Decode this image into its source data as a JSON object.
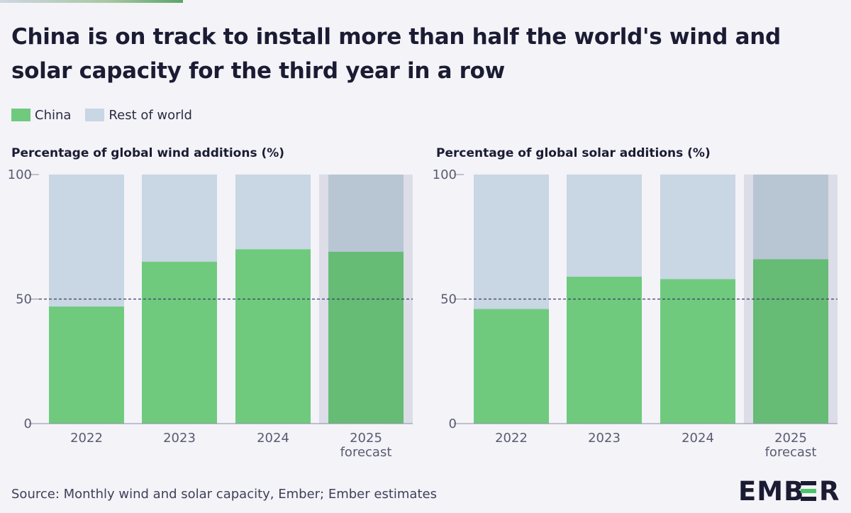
{
  "title": "China is on track to install more than half the world's wind and solar capacity for the third year in a row",
  "legend": [
    {
      "label": "China",
      "color": "#6fca7e"
    },
    {
      "label": "Rest of world",
      "color": "#c9d6e3"
    }
  ],
  "source": "Source: Monthly wind and solar capacity, Ember; Ember estimates",
  "logo_text": "EMBER",
  "colors": {
    "china": "#6fca7e",
    "china_forecast": "#66bb75",
    "rest": "#c9d6e3",
    "rest_forecast": "#b8c6d4",
    "forecast_bg": "#dcdde7",
    "reference_line": "#3b3f66",
    "axis_text": "#5a5b70"
  },
  "chart_data": [
    {
      "type": "bar",
      "stacked": true,
      "title": "Percentage of global wind additions (%)",
      "categories": [
        "2022",
        "2023",
        "2024",
        "2025\nforecast"
      ],
      "series": [
        {
          "name": "China",
          "values": [
            47,
            65,
            70,
            69
          ]
        },
        {
          "name": "Rest of world",
          "values": [
            53,
            35,
            30,
            31
          ]
        }
      ],
      "ylim": [
        0,
        100
      ],
      "yticks": [
        0,
        50,
        100
      ],
      "reference_line": 50,
      "forecast_category": "2025\nforecast"
    },
    {
      "type": "bar",
      "stacked": true,
      "title": "Percentage of global solar additions (%)",
      "categories": [
        "2022",
        "2023",
        "2024",
        "2025\nforecast"
      ],
      "series": [
        {
          "name": "China",
          "values": [
            46,
            59,
            58,
            66
          ]
        },
        {
          "name": "Rest of world",
          "values": [
            54,
            41,
            42,
            34
          ]
        }
      ],
      "ylim": [
        0,
        100
      ],
      "yticks": [
        0,
        50,
        100
      ],
      "reference_line": 50,
      "forecast_category": "2025\nforecast"
    }
  ]
}
